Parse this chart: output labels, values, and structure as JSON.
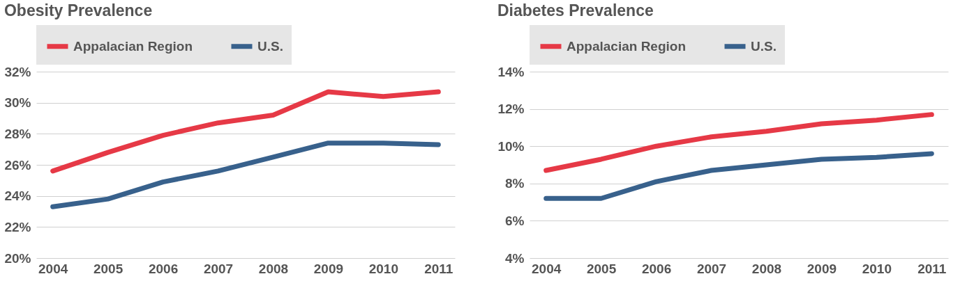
{
  "chart_data": [
    {
      "type": "line",
      "title": "Obesity Prevalence",
      "categories": [
        "2004",
        "2005",
        "2006",
        "2007",
        "2008",
        "2009",
        "2010",
        "2011"
      ],
      "series": [
        {
          "name": "Appalacian Region",
          "color": "#e63946",
          "values": [
            25.6,
            26.8,
            27.9,
            28.7,
            29.2,
            30.7,
            30.4,
            30.7
          ]
        },
        {
          "name": "U.S.",
          "color": "#38618c",
          "values": [
            23.3,
            23.8,
            24.9,
            25.6,
            26.5,
            27.4,
            27.4,
            27.3
          ]
        }
      ],
      "ylim": [
        20,
        32
      ],
      "yticks": [
        {
          "value": 20,
          "label": "20%"
        },
        {
          "value": 22,
          "label": "22%"
        },
        {
          "value": 24,
          "label": "24%"
        },
        {
          "value": 26,
          "label": "26%"
        },
        {
          "value": 28,
          "label": "28%"
        },
        {
          "value": 30,
          "label": "30%"
        },
        {
          "value": 32,
          "label": "32%"
        }
      ],
      "grid": "y",
      "legend": "top left",
      "marker": "none",
      "line_style": "solid"
    },
    {
      "type": "line",
      "title": "Diabetes Prevalence",
      "categories": [
        "2004",
        "2005",
        "2006",
        "2007",
        "2008",
        "2009",
        "2010",
        "2011"
      ],
      "series": [
        {
          "name": "Appalacian Region",
          "color": "#e63946",
          "values": [
            8.7,
            9.3,
            10.0,
            10.5,
            10.8,
            11.2,
            11.4,
            11.7
          ]
        },
        {
          "name": "U.S.",
          "color": "#38618c",
          "values": [
            7.2,
            7.2,
            8.1,
            8.7,
            9.0,
            9.3,
            9.4,
            9.6
          ]
        }
      ],
      "ylim": [
        4,
        14
      ],
      "yticks": [
        {
          "value": 4,
          "label": "4%"
        },
        {
          "value": 6,
          "label": "6%"
        },
        {
          "value": 8,
          "label": "8%"
        },
        {
          "value": 10,
          "label": "10%"
        },
        {
          "value": 12,
          "label": "12%"
        },
        {
          "value": 14,
          "label": "14%"
        }
      ],
      "grid": "y",
      "legend": "top left",
      "marker": "none",
      "line_style": "solid"
    }
  ]
}
